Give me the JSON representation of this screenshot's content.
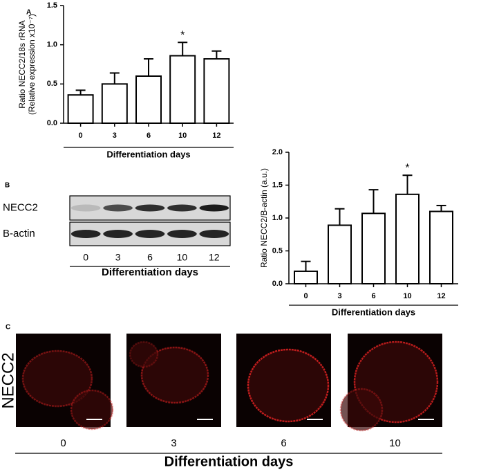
{
  "chart_data": [
    {
      "type": "bar",
      "panel": "A",
      "y_label": [
        "Ratio NECC2/18s rRNA",
        "(Relative expression x10⁻⁷)"
      ],
      "x_label": "Differentiation days",
      "categories": [
        "0",
        "3",
        "6",
        "10",
        "12"
      ],
      "values": [
        0.36,
        0.5,
        0.6,
        0.86,
        0.82
      ],
      "errors": [
        0.06,
        0.14,
        0.22,
        0.17,
        0.1
      ],
      "color": "#ffffff",
      "ylim": [
        0,
        1.5
      ],
      "yticks": [
        {
          "value": 0,
          "label": "0.0"
        },
        0.5,
        {
          "value": 1,
          "label": "1.0"
        },
        1.5
      ],
      "annotations": [
        {
          "text": "*",
          "category": "10"
        }
      ]
    },
    {
      "type": "bar",
      "y_label": [
        "Ratio NECC2/B-actin (a.u.)"
      ],
      "x_label": "Differentiation days",
      "categories": [
        "0",
        "3",
        "6",
        "10",
        "12"
      ],
      "values": [
        0.19,
        0.89,
        1.07,
        1.36,
        1.1
      ],
      "errors": [
        0.15,
        0.25,
        0.36,
        0.29,
        0.09
      ],
      "color": "#ffffff",
      "ylim": [
        0,
        2
      ],
      "yticks": [
        {
          "value": 0,
          "label": "0.0"
        },
        0.5,
        {
          "value": 1,
          "label": "1.0"
        },
        1.5,
        {
          "value": 2,
          "label": "2.0"
        }
      ],
      "annotations": [
        {
          "text": "*",
          "category": "10"
        }
      ]
    }
  ],
  "blot": {
    "panel": "B",
    "rows": [
      "NECC2",
      "B-actin"
    ],
    "lanes": [
      "0",
      "3",
      "6",
      "10",
      "12"
    ],
    "x_label": "Differentiation days"
  },
  "micrographs": {
    "panel": "C",
    "stain": "NECC2",
    "lanes": [
      "0",
      "3",
      "6",
      "10"
    ],
    "x_label": "Differentiation days"
  }
}
